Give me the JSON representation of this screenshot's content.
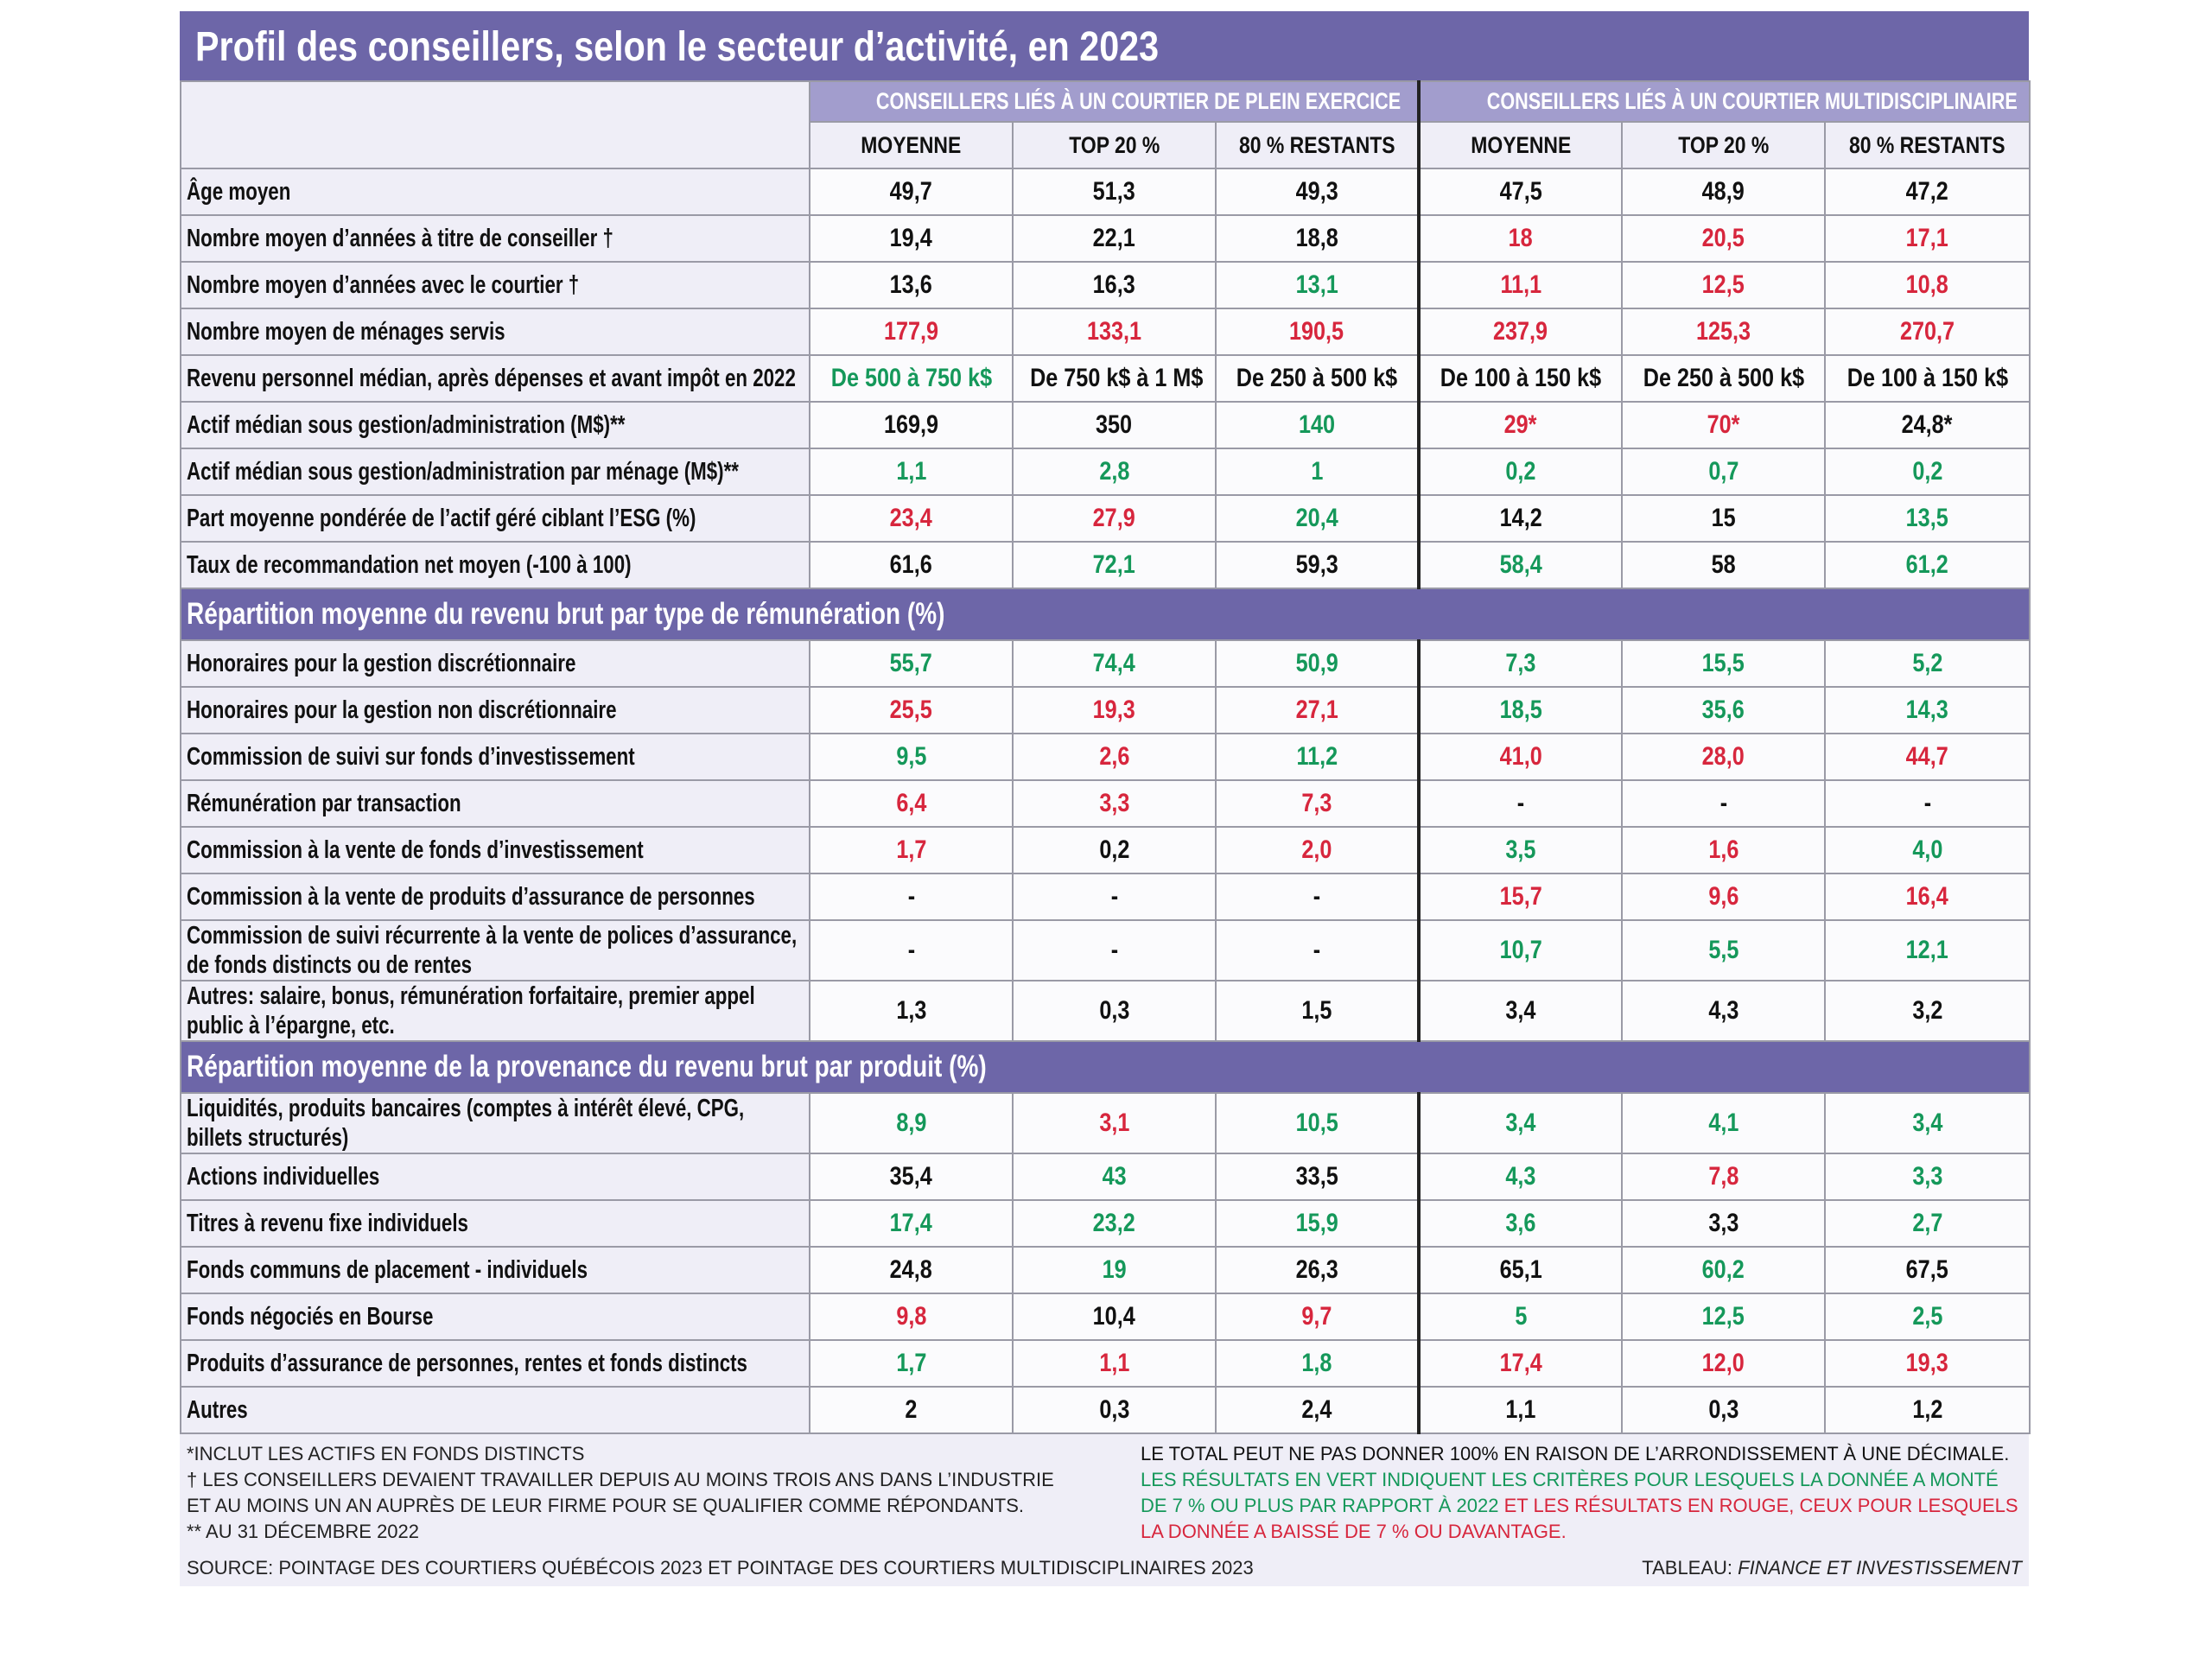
{
  "title": "Profil des conseillers, selon le secteur d’activité, en 2023",
  "palette": {
    "g": "#15985a",
    "r": "#d7263d",
    "k": "#111111"
  },
  "column_groups": [
    "CONSEILLERS LIÉS À UN COURTIER DE PLEIN EXERCICE",
    "CONSEILLERS LIÉS À UN COURTIER MULTIDISCIPLINAIRE"
  ],
  "columns": [
    "MOYENNE",
    "TOP 20 %",
    "80 % RESTANTS",
    "MOYENNE",
    "TOP 20 %",
    "80 % RESTANTS"
  ],
  "sections": [
    {
      "rows": [
        {
          "label": "Âge moyen",
          "cells": [
            "49,7",
            "51,3",
            "49,3",
            "47,5",
            "48,9",
            "47,2"
          ],
          "colors": [
            "k",
            "k",
            "k",
            "k",
            "k",
            "k"
          ]
        },
        {
          "label": "Nombre moyen d’années à titre de conseiller †",
          "cells": [
            "19,4",
            "22,1",
            "18,8",
            "18",
            "20,5",
            "17,1"
          ],
          "colors": [
            "k",
            "k",
            "k",
            "r",
            "r",
            "r"
          ]
        },
        {
          "label": "Nombre moyen d’années avec le courtier †",
          "cells": [
            "13,6",
            "16,3",
            "13,1",
            "11,1",
            "12,5",
            "10,8"
          ],
          "colors": [
            "k",
            "k",
            "g",
            "r",
            "r",
            "r"
          ]
        },
        {
          "label": "Nombre moyen de ménages servis",
          "cells": [
            "177,9",
            "133,1",
            "190,5",
            "237,9",
            "125,3",
            "270,7"
          ],
          "colors": [
            "r",
            "r",
            "r",
            "r",
            "r",
            "r"
          ]
        },
        {
          "label": "Revenu personnel médian, après dépenses et avant impôt en 2022",
          "cells": [
            "De 500 à 750 k$",
            "De 750 k$ à 1 M$",
            "De 250 à 500 k$",
            "De 100 à 150 k$",
            "De 250 à 500 k$",
            "De 100 à 150 k$"
          ],
          "colors": [
            "g",
            "k",
            "k",
            "k",
            "k",
            "k"
          ]
        },
        {
          "label": "Actif médian sous gestion/administration (M$)**",
          "cells": [
            "169,9",
            "350",
            "140",
            "29*",
            "70*",
            "24,8*"
          ],
          "colors": [
            "k",
            "k",
            "g",
            "r",
            "r",
            "k"
          ]
        },
        {
          "label": "Actif médian sous gestion/administration par ménage (M$)**",
          "cells": [
            "1,1",
            "2,8",
            "1",
            "0,2",
            "0,7",
            "0,2"
          ],
          "colors": [
            "g",
            "g",
            "g",
            "g",
            "g",
            "g"
          ]
        },
        {
          "label": "Part moyenne pondérée de l’actif géré ciblant l’ESG (%)",
          "cells": [
            "23,4",
            "27,9",
            "20,4",
            "14,2",
            "15",
            "13,5"
          ],
          "colors": [
            "r",
            "r",
            "g",
            "k",
            "k",
            "g"
          ]
        },
        {
          "label": "Taux de recommandation net moyen (-100 à 100)",
          "cells": [
            "61,6",
            "72,1",
            "59,3",
            "58,4",
            "58",
            "61,2"
          ],
          "colors": [
            "k",
            "g",
            "k",
            "g",
            "k",
            "g"
          ]
        }
      ]
    },
    {
      "heading": "Répartition moyenne du revenu brut par type de rémunération (%)",
      "rows": [
        {
          "label": "Honoraires pour la gestion discrétionnaire",
          "cells": [
            "55,7",
            "74,4",
            "50,9",
            "7,3",
            "15,5",
            "5,2"
          ],
          "colors": [
            "g",
            "g",
            "g",
            "g",
            "g",
            "g"
          ]
        },
        {
          "label": "Honoraires pour la gestion non discrétionnaire",
          "cells": [
            "25,5",
            "19,3",
            "27,1",
            "18,5",
            "35,6",
            "14,3"
          ],
          "colors": [
            "r",
            "r",
            "r",
            "g",
            "g",
            "g"
          ]
        },
        {
          "label": "Commission de suivi sur fonds d’investissement",
          "cells": [
            "9,5",
            "2,6",
            "11,2",
            "41,0",
            "28,0",
            "44,7"
          ],
          "colors": [
            "g",
            "r",
            "g",
            "r",
            "r",
            "r"
          ]
        },
        {
          "label": "Rémunération par transaction",
          "cells": [
            "6,4",
            "3,3",
            "7,3",
            "-",
            "-",
            "-"
          ],
          "colors": [
            "r",
            "r",
            "r",
            "k",
            "k",
            "k"
          ]
        },
        {
          "label": "Commission à la vente de fonds d’investissement",
          "cells": [
            "1,7",
            "0,2",
            "2,0",
            "3,5",
            "1,6",
            "4,0"
          ],
          "colors": [
            "r",
            "k",
            "r",
            "g",
            "r",
            "g"
          ]
        },
        {
          "label": "Commission à la vente de produits d’assurance de personnes",
          "cells": [
            "-",
            "-",
            "-",
            "15,7",
            "9,6",
            "16,4"
          ],
          "colors": [
            "k",
            "k",
            "k",
            "r",
            "r",
            "r"
          ]
        },
        {
          "label": "Commission de suivi récurrente à la vente de polices d’assurance, de fonds distincts ou de rentes",
          "cells": [
            "-",
            "-",
            "-",
            "10,7",
            "5,5",
            "12,1"
          ],
          "colors": [
            "k",
            "k",
            "k",
            "g",
            "g",
            "g"
          ]
        },
        {
          "label": "Autres: salaire, bonus, rémunération forfaitaire, premier appel public à l’épargne, etc.",
          "cells": [
            "1,3",
            "0,3",
            "1,5",
            "3,4",
            "4,3",
            "3,2"
          ],
          "colors": [
            "k",
            "k",
            "k",
            "k",
            "k",
            "k"
          ]
        }
      ]
    },
    {
      "heading": "Répartition moyenne de la provenance du revenu brut par produit (%)",
      "rows": [
        {
          "label": "Liquidités, produits bancaires (comptes à intérêt élevé, CPG, billets structurés)",
          "cells": [
            "8,9",
            "3,1",
            "10,5",
            "3,4",
            "4,1",
            "3,4"
          ],
          "colors": [
            "g",
            "r",
            "g",
            "g",
            "g",
            "g"
          ]
        },
        {
          "label": "Actions individuelles",
          "cells": [
            "35,4",
            "43",
            "33,5",
            "4,3",
            "7,8",
            "3,3"
          ],
          "colors": [
            "k",
            "g",
            "k",
            "g",
            "r",
            "g"
          ]
        },
        {
          "label": "Titres à revenu fixe individuels",
          "cells": [
            "17,4",
            "23,2",
            "15,9",
            "3,6",
            "3,3",
            "2,7"
          ],
          "colors": [
            "g",
            "g",
            "g",
            "g",
            "k",
            "g"
          ]
        },
        {
          "label": "Fonds communs de placement - individuels",
          "cells": [
            "24,8",
            "19",
            "26,3",
            "65,1",
            "60,2",
            "67,5"
          ],
          "colors": [
            "k",
            "g",
            "k",
            "k",
            "g",
            "k"
          ]
        },
        {
          "label": "Fonds négociés en Bourse",
          "cells": [
            "9,8",
            "10,4",
            "9,7",
            "5",
            "12,5",
            "2,5"
          ],
          "colors": [
            "r",
            "k",
            "r",
            "g",
            "g",
            "g"
          ]
        },
        {
          "label": "Produits d’assurance de personnes, rentes et fonds distincts",
          "cells": [
            "1,7",
            "1,1",
            "1,8",
            "17,4",
            "12,0",
            "19,3"
          ],
          "colors": [
            "g",
            "r",
            "g",
            "r",
            "r",
            "r"
          ]
        },
        {
          "label": "Autres",
          "cells": [
            "2",
            "0,3",
            "2,4",
            "1,1",
            "0,3",
            "1,2"
          ],
          "colors": [
            "k",
            "k",
            "k",
            "k",
            "k",
            "k"
          ]
        }
      ]
    }
  ],
  "notes": {
    "left": [
      "*INCLUT LES ACTIFS EN FONDS DISTINCTS",
      "† LES CONSEILLERS DEVAIENT TRAVAILLER DEPUIS AU MOINS TROIS ANS DANS L’INDUSTRIE ET AU MOINS UN AN AUPRÈS DE LEUR FIRME POUR SE QUALIFIER COMME RÉPONDANTS.",
      "** AU 31 DÉCEMBRE 2022"
    ],
    "right": [
      {
        "text": "LE TOTAL PEUT NE PAS DONNER 100% EN RAISON DE L’ARRONDISSEMENT À UNE DÉCIMALE.",
        "color": "k"
      },
      {
        "text": "LES RÉSULTATS EN VERT INDIQUENT LES CRITÈRES POUR LESQUELS LA DONNÉE A MONTÉ DE 7 % OU PLUS PAR RAPPORT À 2022",
        "color": "g"
      },
      {
        "text": "ET LES RÉSULTATS EN ROUGE, CEUX POUR LESQUELS LA DONNÉE A BAISSÉ DE 7 % OU DAVANTAGE.",
        "color": "r"
      }
    ],
    "source": "SOURCE: POINTAGE DES COURTIERS QUÉBÉCOIS 2023 ET POINTAGE DES COURTIERS MULTIDISCIPLINAIRES 2023",
    "credit_prefix": "TABLEAU:",
    "credit": "FINANCE ET INVESTISSEMENT"
  }
}
